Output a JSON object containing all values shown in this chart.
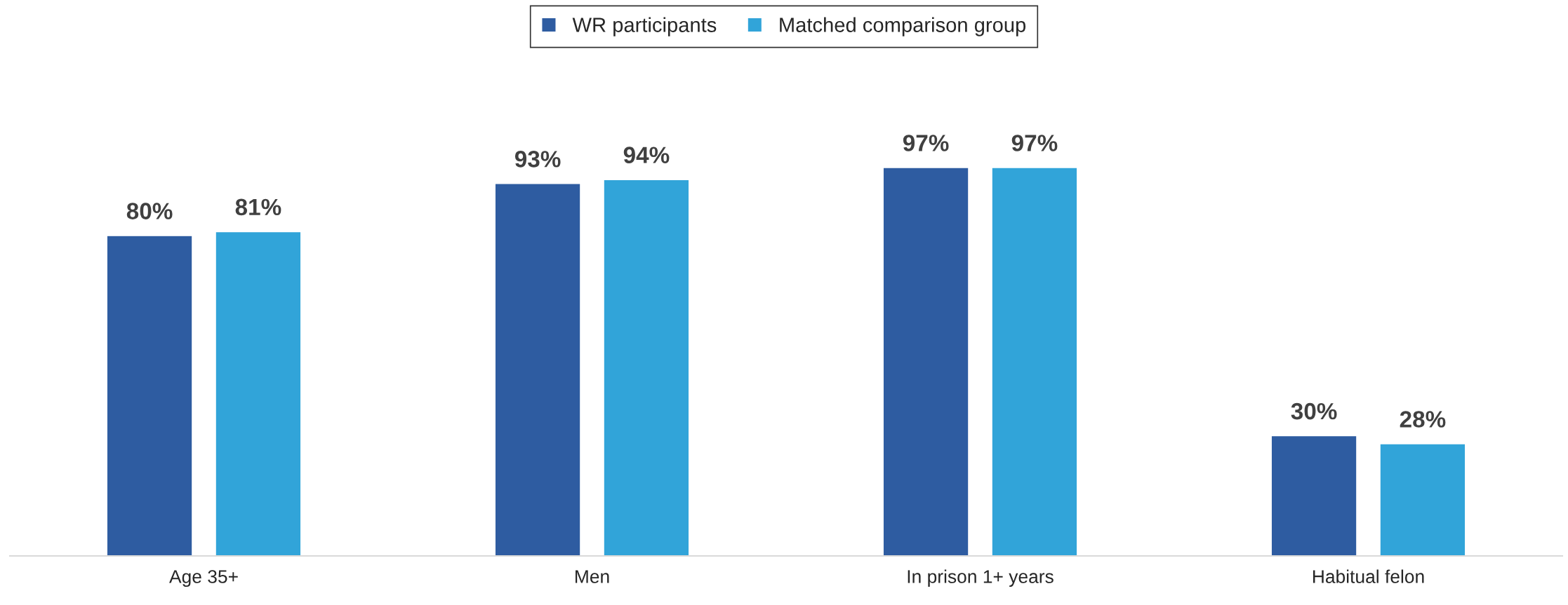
{
  "chart_data": {
    "type": "bar",
    "categories": [
      "Age 35+",
      "Men",
      "In prison 1+ years",
      "Habitual felon"
    ],
    "series": [
      {
        "name": "WR participants",
        "color": "#2e5ca1",
        "values": [
          80,
          93,
          97,
          30
        ],
        "value_labels": [
          "80%",
          "93%",
          "97%",
          "30%"
        ]
      },
      {
        "name": "Matched comparison group",
        "color": "#31a4d9",
        "values": [
          81,
          94,
          97,
          28
        ],
        "value_labels": [
          "81%",
          "94%",
          "97%",
          "28%"
        ]
      }
    ],
    "legend": "top",
    "grid": false,
    "tick_labels": "x"
  }
}
